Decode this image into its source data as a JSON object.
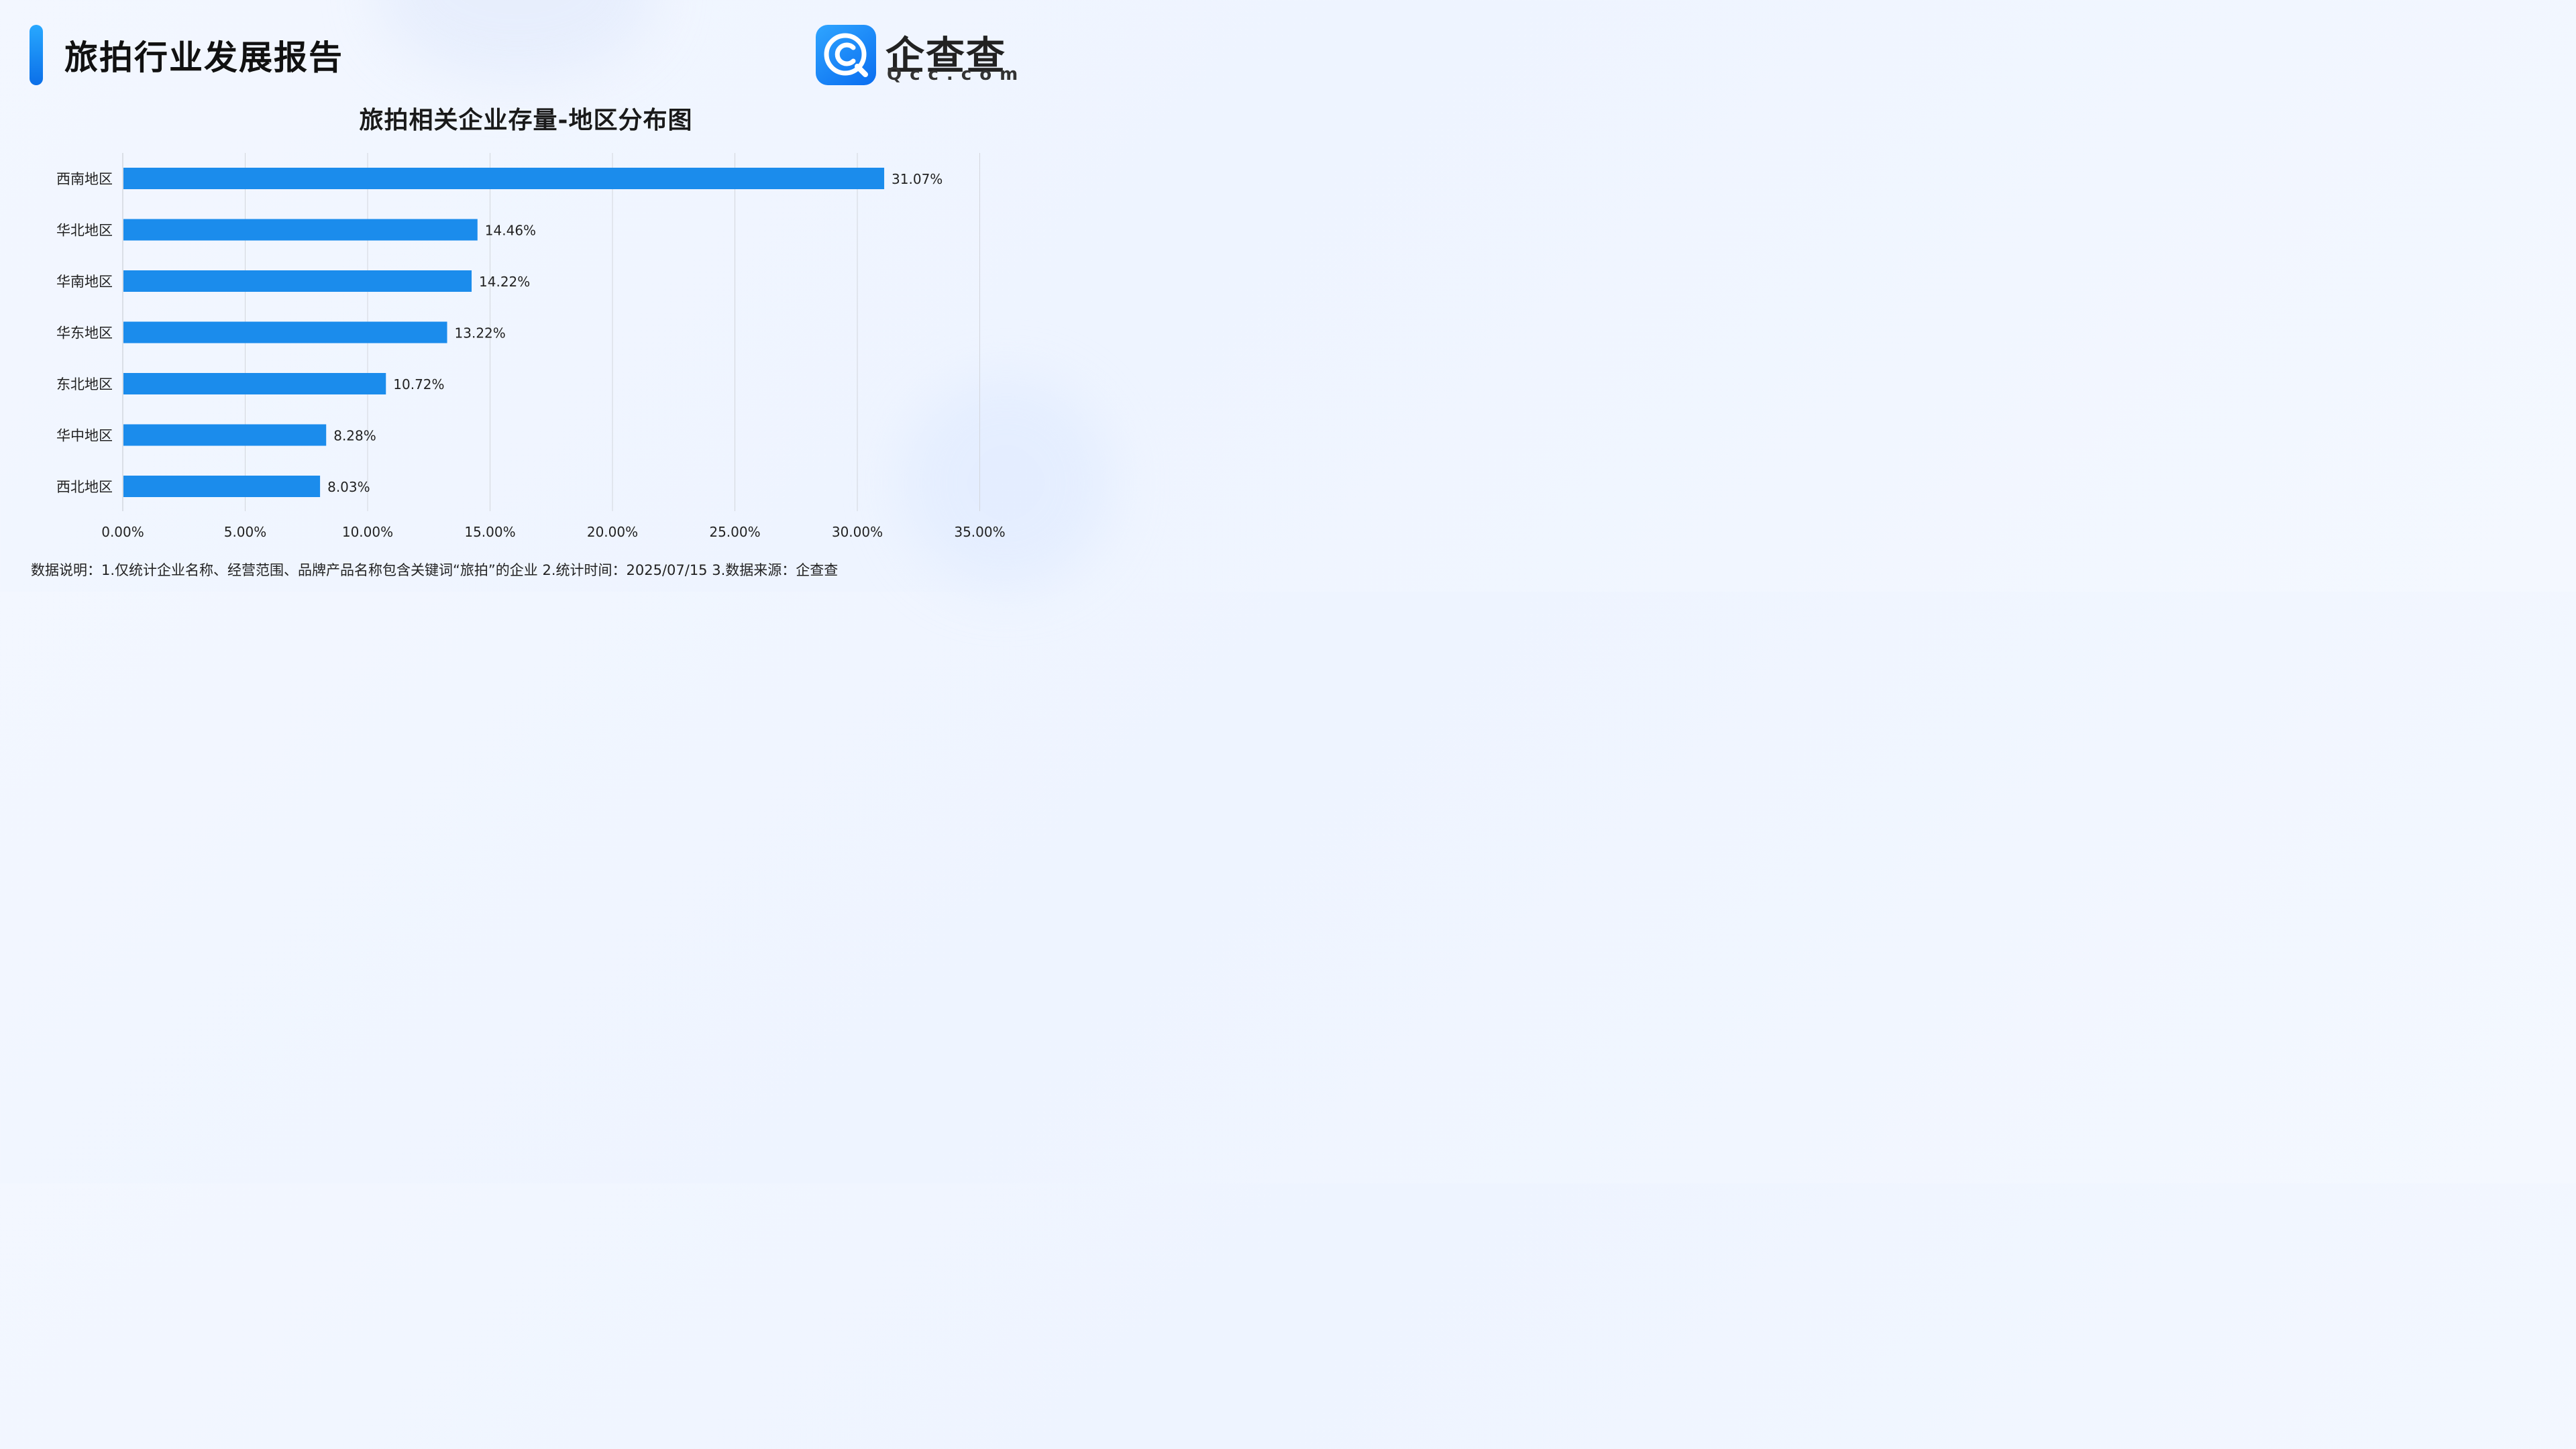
{
  "header": {
    "title": "旅拍行业发展报告"
  },
  "logo": {
    "name": "企查查",
    "domain": "Qcc.com"
  },
  "colors": {
    "accent": "#0b6fe8",
    "bar": "#1b8cec",
    "grid": "#d3d6dc"
  },
  "chart_data": {
    "type": "bar",
    "orientation": "horizontal",
    "title": "旅拍相关企业存量-地区分布图",
    "xlabel": "",
    "ylabel": "",
    "categories": [
      "西南地区",
      "华北地区",
      "华南地区",
      "华东地区",
      "东北地区",
      "华中地区",
      "西北地区"
    ],
    "values": [
      31.07,
      14.46,
      14.22,
      13.22,
      10.72,
      8.28,
      8.03
    ],
    "value_labels": [
      "31.07%",
      "14.46%",
      "14.22%",
      "13.22%",
      "10.72%",
      "8.28%",
      "8.03%"
    ],
    "xlim": [
      0,
      35
    ],
    "ticks": [
      0,
      5,
      10,
      15,
      20,
      25,
      30,
      35
    ],
    "tick_labels": [
      "0.00%",
      "5.00%",
      "10.00%",
      "15.00%",
      "20.00%",
      "25.00%",
      "30.00%",
      "35.00%"
    ],
    "grid": "vertical",
    "legend": "none"
  },
  "footnote": "数据说明：1.仅统计企业名称、经营范围、品牌产品名称包含关键词“旅拍”的企业   2.统计时间：2025/07/15    3.数据来源：企查查"
}
